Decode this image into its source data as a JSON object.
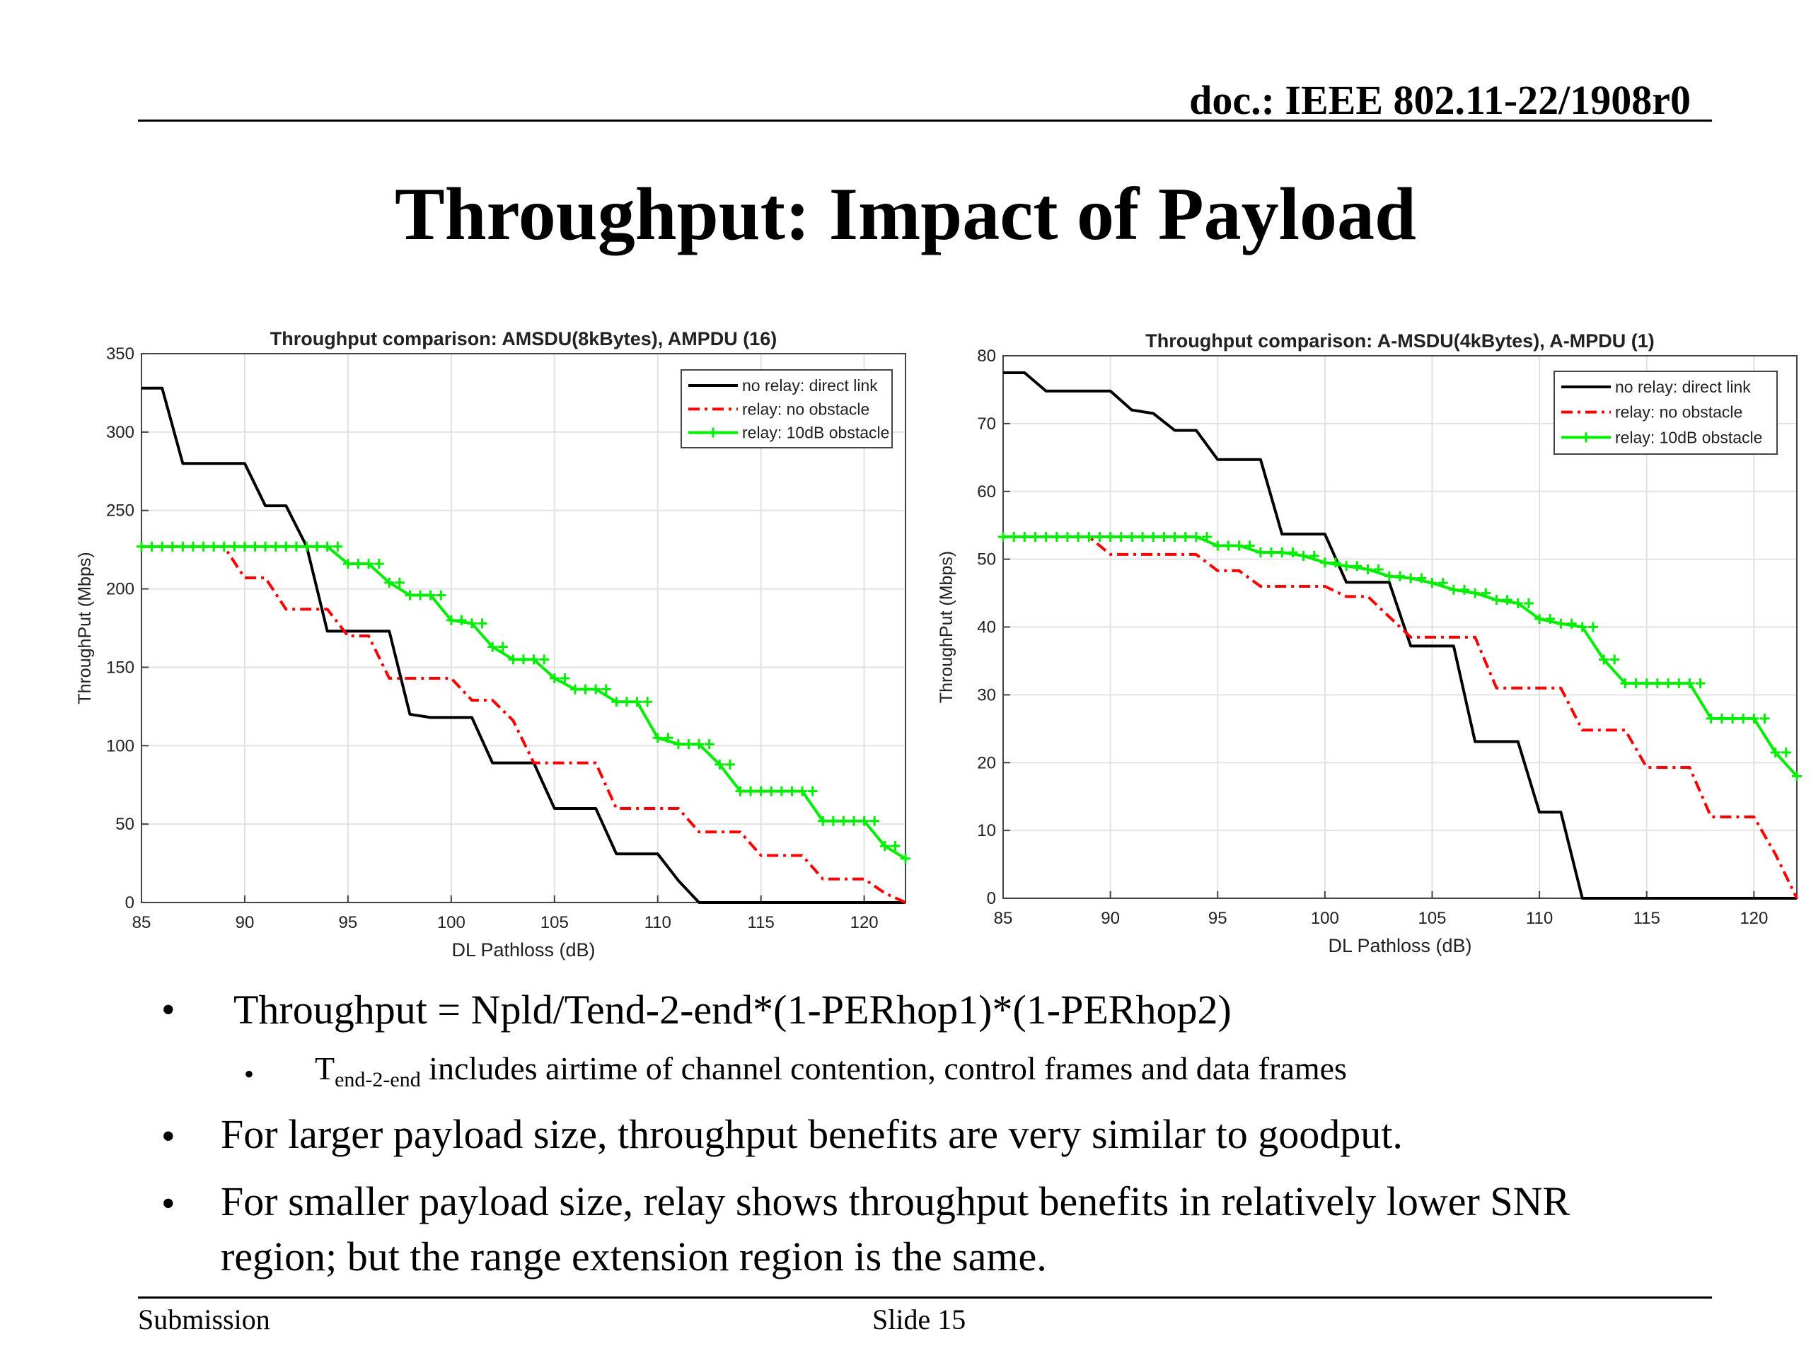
{
  "header": {
    "doc_id": "doc.: IEEE 802.11-22/1908r0"
  },
  "slide": {
    "title": "Throughput: Impact of Payload"
  },
  "legend": [
    {
      "label": "no relay: direct link",
      "color": "#000000"
    },
    {
      "label": "relay: no obstacle",
      "color": "#ff0000"
    },
    {
      "label": "relay: 10dB obstacle",
      "color": "#00ee00"
    }
  ],
  "chart_data": [
    {
      "type": "line",
      "title": "Throughput comparison:  AMSDU(8kBytes), AMPDU (16)",
      "xlabel": "DL Pathloss (dB)",
      "ylabel": "ThroughPut (Mbps)",
      "xlim": [
        85,
        122
      ],
      "ylim": [
        0,
        350
      ],
      "xticks": [
        85,
        90,
        95,
        100,
        105,
        110,
        115,
        120
      ],
      "yticks": [
        0,
        50,
        100,
        150,
        200,
        250,
        300,
        350
      ],
      "grid": true,
      "legend_position": "top-right",
      "series": [
        {
          "name": "no relay: direct link",
          "x": [
            85,
            86,
            87,
            88,
            89,
            90,
            91,
            92,
            93,
            94,
            95,
            96,
            97,
            98,
            99,
            100,
            101,
            102,
            103,
            104,
            105,
            106,
            107,
            108,
            109,
            110,
            111,
            112,
            113,
            114,
            115,
            116,
            117,
            118,
            119,
            120,
            121,
            122
          ],
          "y": [
            328,
            328,
            280,
            280,
            280,
            280,
            253,
            253,
            227,
            173,
            173,
            173,
            173,
            120,
            118,
            118,
            118,
            89,
            89,
            89,
            60,
            60,
            60,
            31,
            31,
            31,
            14,
            0,
            0,
            0,
            0,
            0,
            0,
            0,
            0,
            0,
            0,
            0
          ]
        },
        {
          "name": "relay: no obstacle",
          "x": [
            85,
            86,
            87,
            88,
            89,
            90,
            91,
            92,
            93,
            94,
            95,
            96,
            97,
            98,
            99,
            100,
            101,
            102,
            103,
            104,
            105,
            106,
            107,
            108,
            109,
            110,
            111,
            112,
            113,
            114,
            115,
            116,
            117,
            118,
            119,
            120,
            121,
            122
          ],
          "y": [
            227,
            227,
            227,
            227,
            227,
            207,
            207,
            187,
            187,
            187,
            170,
            170,
            143,
            143,
            143,
            143,
            129,
            129,
            116,
            89,
            89,
            89,
            89,
            60,
            60,
            60,
            60,
            45,
            45,
            45,
            30,
            30,
            30,
            15,
            15,
            15,
            6,
            0
          ]
        },
        {
          "name": "relay: 10dB obstacle",
          "x": [
            85,
            86,
            87,
            88,
            89,
            90,
            91,
            92,
            93,
            94,
            95,
            96,
            97,
            98,
            99,
            100,
            101,
            102,
            103,
            104,
            105,
            106,
            107,
            108,
            109,
            110,
            111,
            112,
            113,
            114,
            115,
            116,
            117,
            118,
            119,
            120,
            121,
            122
          ],
          "y": [
            227,
            227,
            227,
            227,
            227,
            227,
            227,
            227,
            227,
            227,
            216,
            216,
            204,
            196,
            196,
            180,
            178,
            163,
            155,
            155,
            143,
            136,
            136,
            128,
            128,
            105,
            101,
            101,
            88,
            71,
            71,
            71,
            71,
            52,
            52,
            52,
            36,
            28
          ]
        }
      ]
    },
    {
      "type": "line",
      "title": "Throughput comparison:  A-MSDU(4kBytes), A-MPDU (1)",
      "xlabel": "DL Pathloss (dB)",
      "ylabel": "ThroughPut (Mbps)",
      "xlim": [
        85,
        122
      ],
      "ylim": [
        0,
        80
      ],
      "xticks": [
        85,
        90,
        95,
        100,
        105,
        110,
        115,
        120
      ],
      "yticks": [
        0,
        10,
        20,
        30,
        40,
        50,
        60,
        70,
        80
      ],
      "grid": true,
      "legend_position": "top-right",
      "series": [
        {
          "name": "no relay: direct link",
          "x": [
            85,
            86,
            87,
            88,
            89,
            90,
            91,
            92,
            93,
            94,
            95,
            96,
            97,
            98,
            99,
            100,
            101,
            102,
            103,
            104,
            105,
            106,
            107,
            108,
            109,
            110,
            111,
            112,
            113,
            114,
            115,
            116,
            117,
            118,
            119,
            120,
            121,
            122
          ],
          "y": [
            77.5,
            77.5,
            74.8,
            74.8,
            74.8,
            74.8,
            72,
            71.5,
            69,
            69,
            64.7,
            64.7,
            64.7,
            53.7,
            53.7,
            53.7,
            46.6,
            46.6,
            46.6,
            37.2,
            37.2,
            37.2,
            23.1,
            23.1,
            23.1,
            12.7,
            12.7,
            0,
            0,
            0,
            0,
            0,
            0,
            0,
            0,
            0,
            0,
            0
          ]
        },
        {
          "name": "relay: no obstacle",
          "x": [
            85,
            86,
            87,
            88,
            89,
            90,
            91,
            92,
            93,
            94,
            95,
            96,
            97,
            98,
            99,
            100,
            101,
            102,
            103,
            104,
            105,
            106,
            107,
            108,
            109,
            110,
            111,
            112,
            113,
            114,
            115,
            116,
            117,
            118,
            119,
            120,
            121,
            122
          ],
          "y": [
            53.3,
            53.3,
            53.3,
            53.3,
            53.3,
            50.7,
            50.7,
            50.7,
            50.7,
            50.7,
            48.3,
            48.3,
            46,
            46,
            46,
            46,
            44.5,
            44.5,
            41.5,
            38.5,
            38.5,
            38.5,
            38.5,
            31,
            31,
            31,
            31,
            24.8,
            24.8,
            24.8,
            19.3,
            19.3,
            19.3,
            12,
            12,
            12,
            6.5,
            0
          ]
        },
        {
          "name": "relay: 10dB obstacle",
          "x": [
            85,
            86,
            87,
            88,
            89,
            90,
            91,
            92,
            93,
            94,
            95,
            96,
            97,
            98,
            99,
            100,
            101,
            102,
            103,
            104,
            105,
            106,
            107,
            108,
            109,
            110,
            111,
            112,
            113,
            114,
            115,
            116,
            117,
            118,
            119,
            120,
            121,
            122
          ],
          "y": [
            53.3,
            53.3,
            53.3,
            53.3,
            53.3,
            53.3,
            53.3,
            53.3,
            53.3,
            53.3,
            52,
            52,
            51,
            51,
            50.5,
            49.5,
            49,
            48.5,
            47.5,
            47.2,
            46.5,
            45.5,
            45,
            44,
            43.5,
            41.2,
            40.5,
            40,
            35.2,
            31.7,
            31.7,
            31.7,
            31.7,
            26.5,
            26.5,
            26.5,
            21.5,
            18
          ]
        }
      ]
    }
  ],
  "bullets": {
    "b1": "Throughput = Npld/Tend-2-end*(1-PERhop1)*(1-PERhop2)",
    "b1_sub_T": "T",
    "b1_sub_sub": "end-2-end",
    "b1_sub_rest": " includes airtime of channel contention, control frames and data frames",
    "b2": "For larger payload size, throughput benefits are very similar to goodput.",
    "b3_line1": "For smaller payload size, relay shows throughput benefits in relatively lower SNR",
    "b3_line2": "region; but the range extension region is the same.",
    "bullet_char": "•"
  },
  "footer": {
    "left": "Submission",
    "center": "Slide 15"
  }
}
